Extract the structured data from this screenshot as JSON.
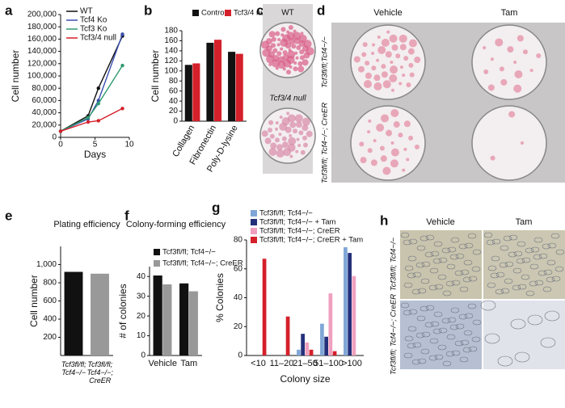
{
  "chart_data": [
    {
      "type": "line",
      "panel": "a",
      "xlabel": "Days",
      "ylabel": "Cell number",
      "x": [
        0,
        4,
        5.5,
        9
      ],
      "xlim": [
        0,
        10
      ],
      "xticks": [
        0,
        5,
        10
      ],
      "ylim": [
        0,
        200000
      ],
      "yticks": [
        0,
        {
          "value": 20000,
          "label": "20,000"
        },
        {
          "value": 40000,
          "label": "40,000"
        },
        {
          "value": 60000,
          "label": "60,000"
        },
        {
          "value": 80000,
          "label": "80,000"
        },
        {
          "value": 100000,
          "label": "100,000"
        },
        {
          "value": 120000,
          "label": "120,000"
        },
        {
          "value": 140000,
          "label": "140,000"
        },
        {
          "value": 160000,
          "label": "160,000"
        },
        {
          "value": 180000,
          "label": "180,000"
        },
        {
          "value": 200000,
          "label": "200,000"
        }
      ],
      "series": [
        {
          "name": "WT",
          "color": "#111111",
          "values": [
            10000,
            35000,
            80000,
            165000
          ]
        },
        {
          "name": "Tcf4 Ko",
          "color": "#3b4fb0",
          "values": [
            10000,
            30000,
            60000,
            168000
          ]
        },
        {
          "name": "Tcf3 Ko",
          "color": "#2f9a6e",
          "values": [
            10000,
            32000,
            55000,
            117000
          ]
        },
        {
          "name": "Tcf3/4 null",
          "color": "#d4202a",
          "values": [
            10000,
            25000,
            27000,
            47000
          ]
        }
      ]
    },
    {
      "type": "bar",
      "panel": "b",
      "ylabel": "Cell number",
      "categories": [
        "Collagen",
        "Fibronectin",
        "Poly-D-lysine"
      ],
      "ylim": [
        0,
        180
      ],
      "yticks": [
        0,
        20,
        40,
        60,
        80,
        100,
        120,
        140,
        160,
        180
      ],
      "series": [
        {
          "name": "Control",
          "color": "#111111",
          "values": [
            112,
            156,
            138
          ]
        },
        {
          "name": "Tcf3/4 null",
          "color": "#d4202a",
          "values": [
            115,
            162,
            134
          ]
        }
      ]
    },
    {
      "type": "bar",
      "panel": "e",
      "title": "Plating efficiency",
      "ylabel": "Cell number",
      "categories": [
        "Tcf3fl/fl; Tcf4−/−",
        "Tcf3fl/fl; Tcf4−/−; CreER"
      ],
      "ylim": [
        0,
        1200
      ],
      "yticks": [
        200,
        400,
        600,
        800,
        {
          "value": 1000,
          "label": "1,000"
        }
      ],
      "series": [
        {
          "name": null,
          "color": "#111111",
          "values": [
            920,
            null
          ]
        },
        {
          "name": null,
          "color": "#999999",
          "values": [
            null,
            900
          ]
        }
      ]
    },
    {
      "type": "bar",
      "panel": "f",
      "title": "Colony-forming efficiency",
      "ylabel": "# of colonies",
      "categories": [
        "Vehicle",
        "Tam"
      ],
      "ylim": [
        0,
        45
      ],
      "yticks": [
        0,
        10,
        20,
        30,
        40
      ],
      "series": [
        {
          "name": "Tcf3fl/fl; Tcf4−/−",
          "color": "#111111",
          "values": [
            40.5,
            36.5
          ]
        },
        {
          "name": "Tcf3fl/fl; Tcf4−/−; CreER",
          "color": "#999999",
          "values": [
            36,
            32.5
          ]
        }
      ]
    },
    {
      "type": "bar",
      "panel": "g",
      "xlabel": "Colony size",
      "ylabel": "% Colonies",
      "categories": [
        "<10",
        "11–20",
        "21–50",
        "51–100",
        ">100"
      ],
      "ylim": [
        0,
        80
      ],
      "yticks": [
        0,
        20,
        40,
        60,
        80
      ],
      "series": [
        {
          "name": "Tcf3fl/fl; Tcf4−/−",
          "color": "#7fa6d6",
          "values": [
            0,
            0,
            4,
            22,
            75
          ]
        },
        {
          "name": "Tcf3fl/fl; Tcf4−/− + Tam",
          "color": "#24307a",
          "values": [
            0,
            0,
            15,
            13,
            71
          ]
        },
        {
          "name": "Tcf3fl/fl; Tcf4−/−; CreER",
          "color": "#f0a0bf",
          "values": [
            0,
            0,
            9,
            43,
            55
          ]
        },
        {
          "name": "Tcf3fl/fl; Tcf4−/−; CreER + Tam",
          "color": "#d4202a",
          "values": [
            67,
            27,
            4,
            3,
            0
          ]
        }
      ]
    }
  ],
  "image_panels": [
    {
      "panel": "c",
      "labels": [
        "WT",
        "Tcf3/4 null"
      ]
    },
    {
      "panel": "d",
      "columns": [
        "Vehicle",
        "Tam"
      ],
      "rows": [
        "Tcf3fl/fl;Tcf4−/−",
        "Tcf3fl/fl; Tcf4−/−; CreER"
      ]
    },
    {
      "panel": "h",
      "columns": [
        "Vehicle",
        "Tam"
      ],
      "rows": [
        "Tcf3fl/fl; Tcf4−/−",
        "Tcf3fl/fl; Tcf4−/−; CreER"
      ]
    }
  ]
}
